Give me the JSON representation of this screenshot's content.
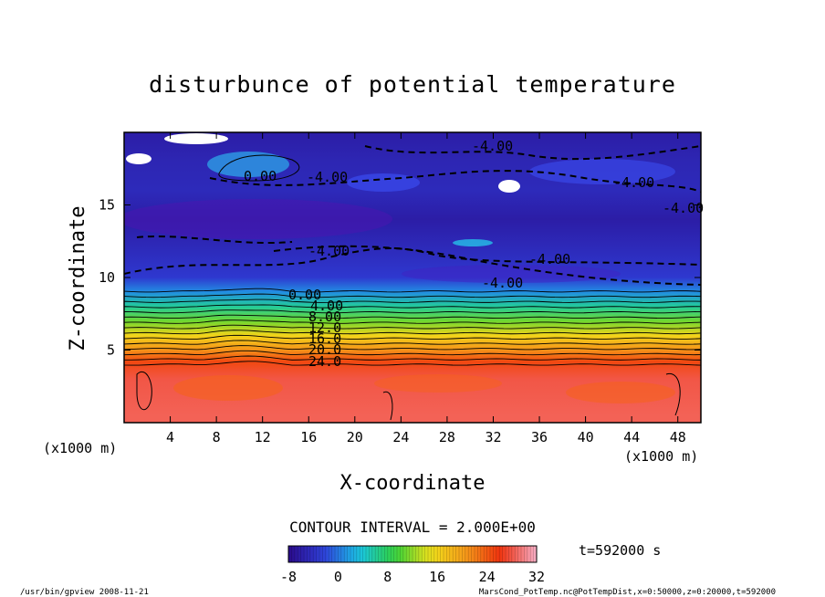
{
  "chart_data": {
    "type": "heatmap",
    "title": "disturbunce of potential temperature",
    "xlabel": "X-coordinate",
    "ylabel": "Z-coordinate",
    "x_unit_left": "(x1000 m)",
    "x_unit_right": "(x1000 m)",
    "xlim": [
      0,
      50
    ],
    "ylim": [
      0,
      20
    ],
    "x_ticks": [
      "4",
      "8",
      "12",
      "16",
      "20",
      "24",
      "28",
      "32",
      "36",
      "40",
      "44",
      "48"
    ],
    "y_ticks": [
      "5",
      "10",
      "15"
    ],
    "contour_interval_label": "CONTOUR INTERVAL = 2.000E+00",
    "time_label": "t=592000 s",
    "colorbar": {
      "min": -8,
      "max": 32,
      "tick_labels": [
        "-8",
        "0",
        "8",
        "16",
        "24",
        "32"
      ]
    },
    "contour_labels": [
      "0.00",
      "4.00",
      "8.00",
      "12.0",
      "16.0",
      "20.0",
      "24.0",
      "-4.00",
      "-4.00",
      "-4.00",
      "-4.00",
      "-4.00",
      "-4.00",
      "-4.00",
      "0.00"
    ],
    "profile": [
      {
        "z": 0.5,
        "value": 28.5
      },
      {
        "z": 3.0,
        "value": 28.0
      },
      {
        "z": 4.2,
        "value": 25.0
      },
      {
        "z": 5.0,
        "value": 21.0
      },
      {
        "z": 6.0,
        "value": 16.0
      },
      {
        "z": 7.0,
        "value": 11.0
      },
      {
        "z": 8.0,
        "value": 6.0
      },
      {
        "z": 9.0,
        "value": 1.0
      },
      {
        "z": 10.0,
        "value": -3.0
      },
      {
        "z": 12.0,
        "value": -4.5
      },
      {
        "z": 14.0,
        "value": -6.0
      },
      {
        "z": 16.0,
        "value": -4.5
      },
      {
        "z": 18.0,
        "value": -5.0
      },
      {
        "z": 20.0,
        "value": -6.0
      }
    ]
  },
  "footer": {
    "left": "/usr/bin/gpview  2008-11-21",
    "right": "MarsCond_PotTemp.nc@PotTempDist,x=0:50000,z=0:20000,t=592000"
  },
  "colors": {
    "cold": "#2a0a8a",
    "blue": "#2f3fd9",
    "cyan": "#19c6e8",
    "green": "#2fd23a",
    "yellow": "#f3e21a",
    "orange": "#f59a1a",
    "red": "#f0300e",
    "pink": "#f7b0c8"
  }
}
